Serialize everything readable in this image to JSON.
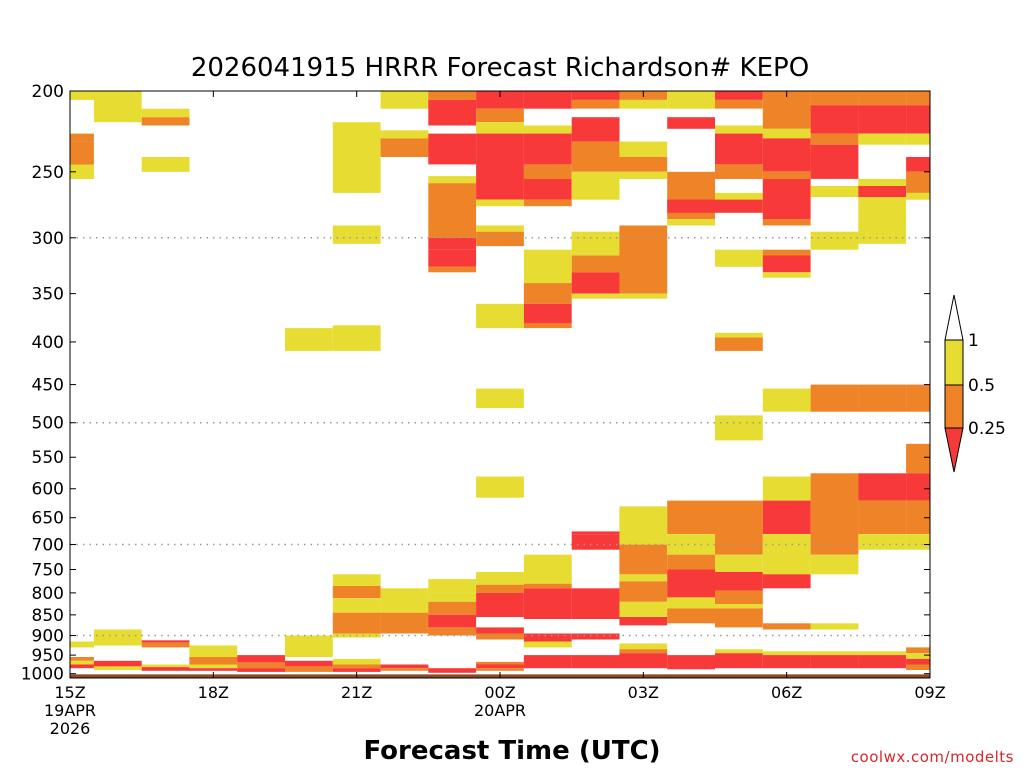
{
  "chart_data": {
    "type": "heatmap",
    "title": "2026041915 HRRR Forecast Richardson# KEPO",
    "xlabel": "Forecast Time (UTC)",
    "credit": "coolwx.com/modelts",
    "x_ticks": [
      {
        "hour": 0,
        "lines": [
          "15Z",
          "19APR",
          "2026"
        ]
      },
      {
        "hour": 3,
        "lines": [
          "18Z"
        ]
      },
      {
        "hour": 6,
        "lines": [
          "21Z"
        ]
      },
      {
        "hour": 9,
        "lines": [
          "00Z",
          "20APR"
        ]
      },
      {
        "hour": 12,
        "lines": [
          "03Z"
        ]
      },
      {
        "hour": 15,
        "lines": [
          "06Z"
        ]
      },
      {
        "hour": 18,
        "lines": [
          "09Z"
        ]
      }
    ],
    "x_range_hours": [
      0,
      18
    ],
    "y_ticks": [
      200,
      250,
      300,
      350,
      400,
      450,
      500,
      550,
      600,
      650,
      700,
      750,
      800,
      850,
      900,
      950,
      1000
    ],
    "y_gridlines": [
      300,
      500,
      700,
      900
    ],
    "y_range_hPa": [
      200,
      1012
    ],
    "y_scale": "log-pressure",
    "colorbar": {
      "labels": [
        "1",
        "0.5",
        "0.25"
      ],
      "colors": {
        "gt1": "#ffffff",
        "half_to_1": "#e6dc32",
        "quarter_to_half": "#ee8327",
        "lt_quarter": "#f7393a"
      },
      "placement": "right"
    },
    "ground_color": "#8b4a26",
    "categories": {
      "Y": "0.5-1",
      "O": "0.25-0.5",
      "R": "<0.25"
    },
    "colors": {
      "Y": "#e6dc32",
      "O": "#ee8327",
      "R": "#f7393a"
    },
    "cells": [
      [
        "Y",
        0,
        1,
        200,
        205
      ],
      [
        "O",
        0,
        0.5,
        225,
        230
      ],
      [
        "O",
        0,
        0.5,
        230,
        245
      ],
      [
        "Y",
        0,
        0.5,
        245,
        255
      ],
      [
        "Y",
        0,
        0.5,
        915,
        930
      ],
      [
        "O",
        0,
        0.5,
        955,
        965
      ],
      [
        "Y",
        0,
        0.5,
        965,
        975
      ],
      [
        "R",
        0,
        0.5,
        975,
        985
      ],
      [
        "Y",
        0.5,
        1.5,
        200,
        218
      ],
      [
        "Y",
        0.5,
        1.5,
        885,
        925
      ],
      [
        "R",
        0.5,
        1.5,
        965,
        980
      ],
      [
        "Y",
        0.5,
        1.5,
        980,
        990
      ],
      [
        "Y",
        1.5,
        2.5,
        210,
        215
      ],
      [
        "O",
        1.5,
        2.5,
        215,
        220
      ],
      [
        "Y",
        1.5,
        2.5,
        240,
        250
      ],
      [
        "R",
        1.5,
        2.5,
        912,
        918
      ],
      [
        "O",
        1.5,
        2.5,
        918,
        930
      ],
      [
        "Y",
        1.5,
        2.5,
        975,
        982
      ],
      [
        "R",
        1.5,
        2.5,
        982,
        992
      ],
      [
        "Y",
        2.5,
        3.5,
        925,
        955
      ],
      [
        "O",
        2.5,
        3.5,
        955,
        975
      ],
      [
        "Y",
        2.5,
        3.5,
        975,
        985
      ],
      [
        "R",
        2.5,
        3.5,
        985,
        992
      ],
      [
        "R",
        3.5,
        4.5,
        950,
        970
      ],
      [
        "O",
        3.5,
        4.5,
        970,
        985
      ],
      [
        "R",
        3.5,
        4.5,
        985,
        995
      ],
      [
        "Y",
        4.5,
        5.5,
        900,
        955
      ],
      [
        "Y",
        4.5,
        5.5,
        385,
        410
      ],
      [
        "R",
        4.5,
        5.5,
        965,
        980
      ],
      [
        "O",
        4.5,
        5.5,
        980,
        995
      ],
      [
        "Y",
        5.5,
        6.5,
        218,
        265
      ],
      [
        "Y",
        5.5,
        6.5,
        290,
        305
      ],
      [
        "Y",
        5.5,
        6.5,
        382,
        410
      ],
      [
        "Y",
        5.5,
        6.5,
        760,
        785
      ],
      [
        "O",
        5.5,
        6.5,
        785,
        812
      ],
      [
        "Y",
        5.5,
        6.5,
        812,
        845
      ],
      [
        "O",
        5.5,
        6.5,
        845,
        895
      ],
      [
        "Y",
        5.5,
        6.5,
        895,
        905
      ],
      [
        "Y",
        5.5,
        6.5,
        960,
        975
      ],
      [
        "O",
        5.5,
        6.5,
        975,
        985
      ],
      [
        "R",
        5.5,
        6.5,
        985,
        995
      ],
      [
        "Y",
        6.5,
        7.5,
        200,
        210
      ],
      [
        "Y",
        6.5,
        7.5,
        223,
        228
      ],
      [
        "O",
        6.5,
        7.5,
        228,
        240
      ],
      [
        "Y",
        6.5,
        7.5,
        790,
        845
      ],
      [
        "O",
        6.5,
        7.5,
        845,
        895
      ],
      [
        "R",
        6.5,
        7.5,
        975,
        985
      ],
      [
        "O",
        6.5,
        7.5,
        985,
        992
      ],
      [
        "O",
        7.5,
        8.5,
        200,
        205
      ],
      [
        "R",
        7.5,
        8.5,
        205,
        220
      ],
      [
        "R",
        7.5,
        8.5,
        225,
        245
      ],
      [
        "Y",
        7.5,
        8.5,
        253,
        258
      ],
      [
        "O",
        7.5,
        8.5,
        258,
        300
      ],
      [
        "R",
        7.5,
        8.5,
        300,
        310
      ],
      [
        "R",
        7.5,
        8.5,
        310,
        325
      ],
      [
        "O",
        7.5,
        8.5,
        325,
        330
      ],
      [
        "Y",
        7.5,
        8.5,
        770,
        800
      ],
      [
        "Y",
        7.5,
        8.5,
        800,
        820
      ],
      [
        "O",
        7.5,
        8.5,
        820,
        850
      ],
      [
        "R",
        7.5,
        8.5,
        850,
        880
      ],
      [
        "O",
        7.5,
        8.5,
        880,
        900
      ],
      [
        "R",
        7.5,
        8.5,
        985,
        998
      ],
      [
        "R",
        8.5,
        9.5,
        200,
        210
      ],
      [
        "O",
        8.5,
        9.5,
        210,
        218
      ],
      [
        "Y",
        8.5,
        9.5,
        218,
        225
      ],
      [
        "R",
        8.5,
        9.5,
        225,
        270
      ],
      [
        "Y",
        8.5,
        9.5,
        270,
        275
      ],
      [
        "Y",
        8.5,
        9.5,
        290,
        295
      ],
      [
        "O",
        8.5,
        9.5,
        295,
        307
      ],
      [
        "Y",
        8.5,
        9.5,
        360,
        385
      ],
      [
        "Y",
        8.5,
        9.5,
        455,
        480
      ],
      [
        "Y",
        8.5,
        9.5,
        580,
        615
      ],
      [
        "Y",
        8.5,
        9.5,
        755,
        782
      ],
      [
        "O",
        8.5,
        9.5,
        782,
        800
      ],
      [
        "R",
        8.5,
        9.5,
        800,
        855
      ],
      [
        "R",
        8.5,
        9.5,
        880,
        895
      ],
      [
        "O",
        8.5,
        9.5,
        895,
        910
      ],
      [
        "O",
        8.5,
        9.5,
        968,
        975
      ],
      [
        "R",
        8.5,
        9.5,
        975,
        985
      ],
      [
        "O",
        8.5,
        9.5,
        985,
        992
      ],
      [
        "R",
        9.5,
        10.5,
        200,
        210
      ],
      [
        "Y",
        9.5,
        10.5,
        220,
        225
      ],
      [
        "R",
        9.5,
        10.5,
        225,
        245
      ],
      [
        "O",
        9.5,
        10.5,
        245,
        255
      ],
      [
        "R",
        9.5,
        10.5,
        255,
        270
      ],
      [
        "O",
        9.5,
        10.5,
        270,
        275
      ],
      [
        "Y",
        9.5,
        10.5,
        310,
        340
      ],
      [
        "O",
        9.5,
        10.5,
        340,
        360
      ],
      [
        "R",
        9.5,
        10.5,
        360,
        380
      ],
      [
        "O",
        9.5,
        10.5,
        380,
        385
      ],
      [
        "Y",
        9.5,
        10.5,
        720,
        780
      ],
      [
        "O",
        9.5,
        10.5,
        780,
        790
      ],
      [
        "R",
        9.5,
        10.5,
        790,
        860
      ],
      [
        "R",
        9.5,
        10.5,
        895,
        915
      ],
      [
        "Y",
        9.5,
        10.5,
        915,
        930
      ],
      [
        "R",
        9.5,
        10.5,
        950,
        985
      ],
      [
        "R",
        10.5,
        11.5,
        200,
        205
      ],
      [
        "O",
        10.5,
        11.5,
        205,
        210
      ],
      [
        "R",
        10.5,
        11.5,
        215,
        230
      ],
      [
        "O",
        10.5,
        11.5,
        230,
        250
      ],
      [
        "Y",
        10.5,
        11.5,
        250,
        270
      ],
      [
        "Y",
        10.5,
        11.5,
        295,
        315
      ],
      [
        "O",
        10.5,
        11.5,
        315,
        330
      ],
      [
        "R",
        10.5,
        11.5,
        330,
        350
      ],
      [
        "Y",
        10.5,
        11.5,
        350,
        355
      ],
      [
        "R",
        10.5,
        11.5,
        675,
        680
      ],
      [
        "R",
        10.5,
        11.5,
        680,
        710
      ],
      [
        "R",
        10.5,
        11.5,
        790,
        860
      ],
      [
        "R",
        10.5,
        11.5,
        895,
        910
      ],
      [
        "R",
        10.5,
        11.5,
        950,
        985
      ],
      [
        "O",
        11.5,
        12.5,
        200,
        205
      ],
      [
        "Y",
        11.5,
        12.5,
        205,
        210
      ],
      [
        "Y",
        11.5,
        12.5,
        230,
        240
      ],
      [
        "O",
        11.5,
        12.5,
        240,
        250
      ],
      [
        "Y",
        11.5,
        12.5,
        250,
        255
      ],
      [
        "O",
        11.5,
        12.5,
        290,
        350
      ],
      [
        "Y",
        11.5,
        12.5,
        350,
        355
      ],
      [
        "Y",
        11.5,
        12.5,
        630,
        700
      ],
      [
        "O",
        11.5,
        12.5,
        700,
        760
      ],
      [
        "Y",
        11.5,
        12.5,
        760,
        775
      ],
      [
        "O",
        11.5,
        12.5,
        775,
        820
      ],
      [
        "Y",
        11.5,
        12.5,
        820,
        855
      ],
      [
        "R",
        11.5,
        12.5,
        855,
        875
      ],
      [
        "Y",
        11.5,
        12.5,
        920,
        935
      ],
      [
        "O",
        11.5,
        12.5,
        935,
        945
      ],
      [
        "R",
        11.5,
        12.5,
        945,
        985
      ],
      [
        "Y",
        12.5,
        13.5,
        200,
        210
      ],
      [
        "R",
        12.5,
        13.5,
        215,
        222
      ],
      [
        "O",
        12.5,
        13.5,
        250,
        285
      ],
      [
        "Y",
        12.5,
        13.5,
        285,
        290
      ],
      [
        "R",
        12.5,
        13.5,
        270,
        280
      ],
      [
        "O",
        12.5,
        13.5,
        620,
        680
      ],
      [
        "Y",
        12.5,
        13.5,
        680,
        720
      ],
      [
        "O",
        12.5,
        13.5,
        720,
        750
      ],
      [
        "R",
        12.5,
        13.5,
        750,
        810
      ],
      [
        "Y",
        12.5,
        13.5,
        810,
        835
      ],
      [
        "O",
        12.5,
        13.5,
        835,
        870
      ],
      [
        "R",
        12.5,
        13.5,
        950,
        988
      ],
      [
        "R",
        13.5,
        14.5,
        200,
        205
      ],
      [
        "O",
        13.5,
        14.5,
        205,
        210
      ],
      [
        "Y",
        13.5,
        14.5,
        220,
        225
      ],
      [
        "R",
        13.5,
        14.5,
        225,
        245
      ],
      [
        "O",
        13.5,
        14.5,
        245,
        255
      ],
      [
        "Y",
        13.5,
        14.5,
        265,
        270
      ],
      [
        "R",
        13.5,
        14.5,
        270,
        280
      ],
      [
        "Y",
        13.5,
        14.5,
        310,
        325
      ],
      [
        "O",
        13.5,
        14.5,
        395,
        410
      ],
      [
        "Y",
        13.5,
        14.5,
        390,
        395
      ],
      [
        "Y",
        13.5,
        14.5,
        490,
        525
      ],
      [
        "O",
        13.5,
        14.5,
        620,
        720
      ],
      [
        "Y",
        13.5,
        14.5,
        720,
        755
      ],
      [
        "R",
        13.5,
        14.5,
        755,
        795
      ],
      [
        "O",
        13.5,
        14.5,
        795,
        825
      ],
      [
        "Y",
        13.5,
        14.5,
        825,
        835
      ],
      [
        "O",
        13.5,
        14.5,
        835,
        880
      ],
      [
        "Y",
        13.5,
        14.5,
        935,
        945
      ],
      [
        "R",
        13.5,
        14.5,
        945,
        985
      ],
      [
        "O",
        14.5,
        15.5,
        200,
        222
      ],
      [
        "Y",
        14.5,
        15.5,
        222,
        228
      ],
      [
        "R",
        14.5,
        15.5,
        228,
        250
      ],
      [
        "O",
        14.5,
        15.5,
        250,
        255
      ],
      [
        "R",
        14.5,
        15.5,
        255,
        285
      ],
      [
        "O",
        14.5,
        15.5,
        285,
        290
      ],
      [
        "O",
        14.5,
        15.5,
        310,
        315
      ],
      [
        "R",
        14.5,
        15.5,
        315,
        330
      ],
      [
        "Y",
        14.5,
        15.5,
        330,
        335
      ],
      [
        "Y",
        14.5,
        15.5,
        455,
        485
      ],
      [
        "Y",
        14.5,
        15.5,
        580,
        620
      ],
      [
        "R",
        14.5,
        15.5,
        620,
        680
      ],
      [
        "Y",
        14.5,
        15.5,
        680,
        760
      ],
      [
        "R",
        14.5,
        15.5,
        760,
        790
      ],
      [
        "O",
        14.5,
        15.5,
        870,
        885
      ],
      [
        "Y",
        14.5,
        15.5,
        940,
        950
      ],
      [
        "R",
        14.5,
        15.5,
        950,
        985
      ],
      [
        "O",
        15.5,
        16.5,
        200,
        208
      ],
      [
        "R",
        15.5,
        16.5,
        208,
        225
      ],
      [
        "O",
        15.5,
        16.5,
        225,
        232
      ],
      [
        "R",
        15.5,
        16.5,
        232,
        255
      ],
      [
        "Y",
        15.5,
        16.5,
        260,
        268
      ],
      [
        "Y",
        15.5,
        16.5,
        295,
        310
      ],
      [
        "O",
        15.5,
        16.5,
        450,
        485
      ],
      [
        "O",
        15.5,
        16.5,
        575,
        720
      ],
      [
        "Y",
        15.5,
        16.5,
        720,
        760
      ],
      [
        "Y",
        15.5,
        16.5,
        870,
        885
      ],
      [
        "Y",
        15.5,
        16.5,
        940,
        950
      ],
      [
        "R",
        15.5,
        16.5,
        950,
        985
      ],
      [
        "O",
        16.5,
        17.5,
        200,
        208
      ],
      [
        "R",
        16.5,
        17.5,
        208,
        225
      ],
      [
        "Y",
        16.5,
        17.5,
        225,
        232
      ],
      [
        "R",
        16.5,
        17.5,
        260,
        268
      ],
      [
        "Y",
        16.5,
        17.5,
        255,
        260
      ],
      [
        "Y",
        16.5,
        17.5,
        268,
        305
      ],
      [
        "O",
        16.5,
        17.5,
        450,
        485
      ],
      [
        "R",
        16.5,
        17.5,
        575,
        620
      ],
      [
        "O",
        16.5,
        17.5,
        620,
        680
      ],
      [
        "Y",
        16.5,
        17.5,
        680,
        710
      ],
      [
        "Y",
        16.5,
        17.5,
        940,
        950
      ],
      [
        "R",
        16.5,
        17.5,
        950,
        985
      ],
      [
        "O",
        17.5,
        18,
        200,
        208
      ],
      [
        "R",
        17.5,
        18,
        208,
        225
      ],
      [
        "Y",
        17.5,
        18,
        225,
        232
      ],
      [
        "R",
        17.5,
        18,
        240,
        250
      ],
      [
        "O",
        17.5,
        18,
        250,
        265
      ],
      [
        "Y",
        17.5,
        18,
        265,
        270
      ],
      [
        "O",
        17.5,
        18,
        450,
        485
      ],
      [
        "O",
        17.5,
        18,
        530,
        575
      ],
      [
        "R",
        17.5,
        18,
        575,
        620
      ],
      [
        "O",
        17.5,
        18,
        620,
        680
      ],
      [
        "Y",
        17.5,
        18,
        680,
        710
      ],
      [
        "O",
        17.5,
        18,
        930,
        945
      ],
      [
        "Y",
        17.5,
        18,
        945,
        960
      ],
      [
        "R",
        17.5,
        18,
        960,
        975
      ],
      [
        "O",
        17.5,
        18,
        975,
        990
      ]
    ]
  }
}
